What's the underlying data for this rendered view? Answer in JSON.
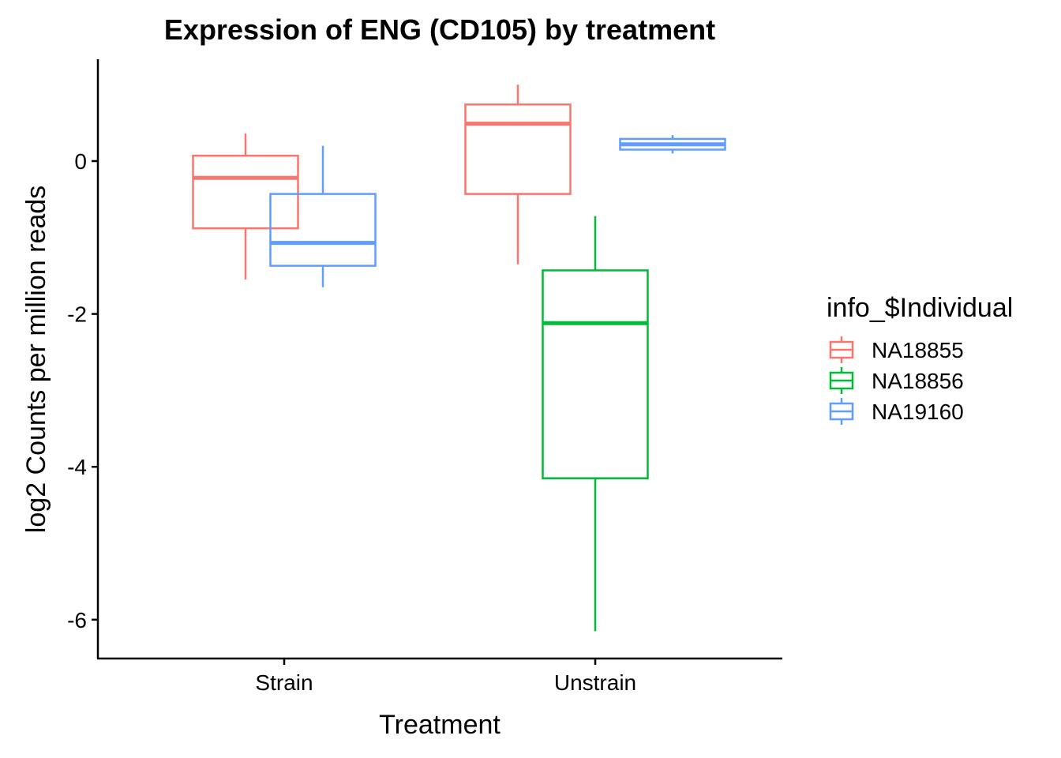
{
  "chart_data": {
    "type": "boxplot",
    "title": "Expression of ENG (CD105) by treatment",
    "xlabel": "Treatment",
    "ylabel": "log2 Counts per million reads",
    "categories": [
      "Strain",
      "Unstrain"
    ],
    "yticks": [
      0,
      -2,
      -4,
      -6
    ],
    "ytick_labels": [
      "0",
      "-2",
      "-4",
      "-6"
    ],
    "ylim": [
      -6.5,
      1.35
    ],
    "grid": false,
    "legend": {
      "title": "info_$Individual",
      "position": "right"
    },
    "series": [
      {
        "name": "NA18855",
        "color": "#F8766D",
        "boxes": [
          {
            "category": "Strain",
            "min": -1.55,
            "q1": -0.88,
            "median": -0.22,
            "q3": 0.07,
            "max": 0.36
          },
          {
            "category": "Unstrain",
            "min": -1.35,
            "q1": -0.43,
            "median": 0.49,
            "q3": 0.74,
            "max": 1.0
          }
        ]
      },
      {
        "name": "NA18856",
        "color": "#00BA38",
        "boxes": [
          {
            "category": "Unstrain",
            "min": -6.15,
            "q1": -4.15,
            "median": -2.12,
            "q3": -1.43,
            "max": -0.72
          }
        ]
      },
      {
        "name": "NA19160",
        "color": "#619CFF",
        "boxes": [
          {
            "category": "Strain",
            "min": -1.65,
            "q1": -1.37,
            "median": -1.07,
            "q3": -0.43,
            "max": 0.2
          },
          {
            "category": "Unstrain",
            "min": 0.1,
            "q1": 0.15,
            "median": 0.22,
            "q3": 0.29,
            "max": 0.34
          }
        ]
      }
    ]
  }
}
